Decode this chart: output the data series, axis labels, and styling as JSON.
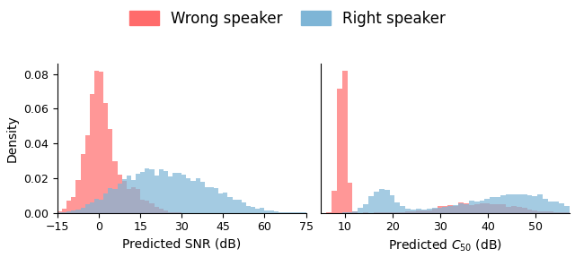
{
  "wrong_color": "#FF6B6B",
  "right_color": "#7EB5D6",
  "alpha": 0.7,
  "ylabel": "Density",
  "xlabel_snr": "Predicted SNR (dB)",
  "xlabel_c50": "Predicted $C_{50}$ (dB)",
  "legend_wrong": "Wrong speaker",
  "legend_right": "Right speaker",
  "snr_xlim": [
    -15,
    75
  ],
  "snr_xticks": [
    -15,
    0,
    15,
    30,
    45,
    60,
    75
  ],
  "c50_xlim": [
    5,
    57
  ],
  "c50_xticks": [
    10,
    20,
    30,
    40,
    50
  ],
  "figsize": [
    6.4,
    2.97
  ],
  "dpi": 100,
  "title_fontsize": 12,
  "label_fontsize": 10
}
